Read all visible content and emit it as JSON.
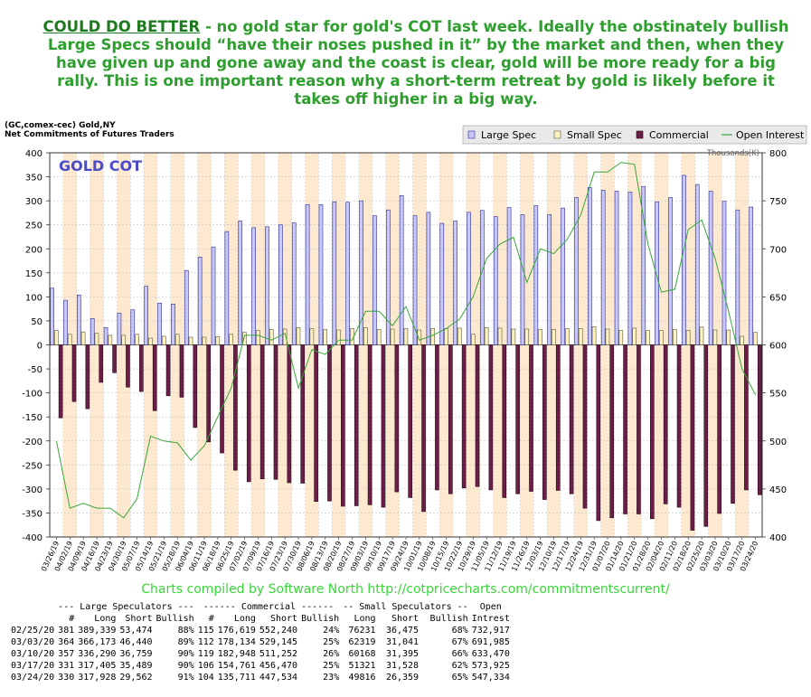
{
  "headline": {
    "lead": "COULD DO BETTER",
    "text": " - no gold star for gold's COT last week. Ideally the obstinately bullish Large Specs should “have their noses pushed in it” by the market and then, when they have given up and gone away and the coast is clear, gold will be more ready for a big rally. This is one important reason why a short-term retreat by gold is likely before it takes off higher in a big way."
  },
  "chart_title": {
    "line1": "(GC,comex-cec) Gold,NY",
    "line2": "Net Commitments of Futures Traders"
  },
  "colors": {
    "large_spec": "#c8c8ff",
    "small_spec": "#fff2c0",
    "commercial": "#6a1e48",
    "open_interest": "#3aa63a",
    "band": "#fde8d0",
    "headline": "#2e9e2e",
    "watermark": "#4b4bc8"
  },
  "chart_data": {
    "type": "bar",
    "watermark": "GOLD COT",
    "units_label": "Thousands(K)",
    "left_ylim": [
      -400,
      400
    ],
    "left_ticks": [
      400,
      350,
      300,
      250,
      200,
      150,
      100,
      50,
      0,
      -50,
      -100,
      -150,
      -200,
      -250,
      -300,
      -350,
      -400
    ],
    "right_ylim": [
      400,
      800
    ],
    "right_ticks": [
      800,
      750,
      700,
      650,
      600,
      550,
      500,
      450,
      400
    ],
    "legend": [
      "Large Spec",
      "Small Spec",
      "Commercial",
      "Open Interest"
    ],
    "legend_placement": "top-right",
    "grid": true,
    "categories": [
      "03/26/19",
      "04/02/19",
      "04/09/19",
      "04/16/19",
      "04/23/19",
      "04/30/19",
      "05/07/19",
      "05/14/19",
      "05/21/19",
      "05/28/19",
      "06/04/19",
      "06/11/19",
      "06/18/19",
      "06/25/19",
      "07/02/19",
      "07/09/19",
      "07/16/19",
      "07/23/19",
      "07/30/19",
      "08/06/19",
      "08/13/19",
      "08/20/19",
      "08/27/19",
      "09/03/19",
      "09/10/19",
      "09/17/19",
      "09/24/19",
      "10/01/19",
      "10/08/19",
      "10/15/19",
      "10/22/19",
      "10/29/19",
      "11/05/19",
      "11/12/19",
      "11/19/19",
      "11/26/19",
      "12/03/19",
      "12/10/19",
      "12/17/19",
      "12/24/19",
      "12/31/19",
      "01/07/20",
      "01/14/20",
      "01/21/20",
      "01/28/20",
      "02/04/20",
      "02/11/20",
      "02/18/20",
      "02/25/20",
      "03/03/20",
      "03/10/20",
      "03/17/20",
      "03/24/20"
    ],
    "series": [
      {
        "name": "Large Spec",
        "values": [
          118,
          93,
          104,
          55,
          36,
          66,
          73,
          122,
          87,
          85,
          155,
          183,
          204,
          236,
          258,
          244,
          246,
          250,
          254,
          292,
          292,
          298,
          297,
          300,
          269,
          281,
          311,
          269,
          276,
          253,
          258,
          276,
          280,
          267,
          286,
          271,
          290,
          271,
          285,
          307,
          328,
          322,
          320,
          318,
          330,
          298,
          307,
          353,
          334,
          320,
          299,
          281,
          287
        ]
      },
      {
        "name": "Small Spec",
        "values": [
          30,
          22,
          27,
          24,
          20,
          20,
          22,
          14,
          18,
          22,
          16,
          16,
          17,
          22,
          26,
          30,
          32,
          33,
          36,
          34,
          32,
          31,
          34,
          36,
          32,
          33,
          34,
          31,
          34,
          34,
          35,
          22,
          36,
          35,
          33,
          33,
          32,
          32,
          34,
          34,
          38,
          33,
          30,
          35,
          30,
          30,
          32,
          30,
          37,
          31,
          31,
          18,
          26
        ]
      },
      {
        "name": "Commercial",
        "values": [
          -152,
          -118,
          -133,
          -78,
          -58,
          -88,
          -97,
          -137,
          -106,
          -109,
          -172,
          -202,
          -225,
          -261,
          -285,
          -279,
          -280,
          -287,
          -288,
          -326,
          -325,
          -336,
          -335,
          -333,
          -338,
          -306,
          -318,
          -347,
          -302,
          -310,
          -298,
          -295,
          -302,
          -318,
          -310,
          -305,
          -322,
          -303,
          -310,
          -340,
          -366,
          -360,
          -352,
          -352,
          -362,
          -331,
          -338,
          -386,
          -378,
          -351,
          -330,
          -302,
          -312
        ]
      },
      {
        "name": "Open Interest",
        "values": [
          500,
          430,
          435,
          430,
          430,
          420,
          440,
          505,
          500,
          498,
          480,
          495,
          525,
          555,
          610,
          610,
          605,
          612,
          555,
          595,
          590,
          605,
          605,
          635,
          635,
          620,
          640,
          605,
          610,
          617,
          627,
          650,
          690,
          705,
          712,
          665,
          700,
          695,
          710,
          735,
          780,
          780,
          790,
          788,
          705,
          655,
          658,
          720,
          730,
          690,
          635,
          575,
          548
        ]
      }
    ]
  },
  "credit": "Charts compiled by Software North  http://cotpricecharts.com/commitmentscurrent/",
  "table": {
    "group_headers": [
      "--- Large Speculators ---",
      "------ Commercial ------",
      "-- Small Speculators --",
      "Open"
    ],
    "columns": [
      "",
      "#",
      "Long",
      "Short",
      "Bullish",
      "#",
      "Long",
      "Short",
      "Bullish",
      "Long",
      "Short",
      "Bullish",
      "Intrest"
    ],
    "rows": [
      [
        "02/25/20",
        "381",
        "389,339",
        "53,474",
        "88%",
        "115",
        "176,619",
        "552,240",
        "24%",
        "76231",
        "36,475",
        "68%",
        "732,917"
      ],
      [
        "03/03/20",
        "364",
        "366,173",
        "46,440",
        "89%",
        "112",
        "178,134",
        "529,145",
        "25%",
        "62319",
        "31,041",
        "67%",
        "691,985"
      ],
      [
        "03/10/20",
        "357",
        "336,290",
        "36,759",
        "90%",
        "119",
        "182,948",
        "511,252",
        "26%",
        "60168",
        "31,395",
        "66%",
        "633,470"
      ],
      [
        "03/17/20",
        "331",
        "317,405",
        "35,489",
        "90%",
        "106",
        "154,761",
        "456,470",
        "25%",
        "51321",
        "31,528",
        "62%",
        "573,925"
      ],
      [
        "03/24/20",
        "330",
        "317,928",
        "29,562",
        "91%",
        "104",
        "135,711",
        "447,534",
        "23%",
        "49816",
        "26,359",
        "65%",
        "547,334"
      ]
    ]
  }
}
